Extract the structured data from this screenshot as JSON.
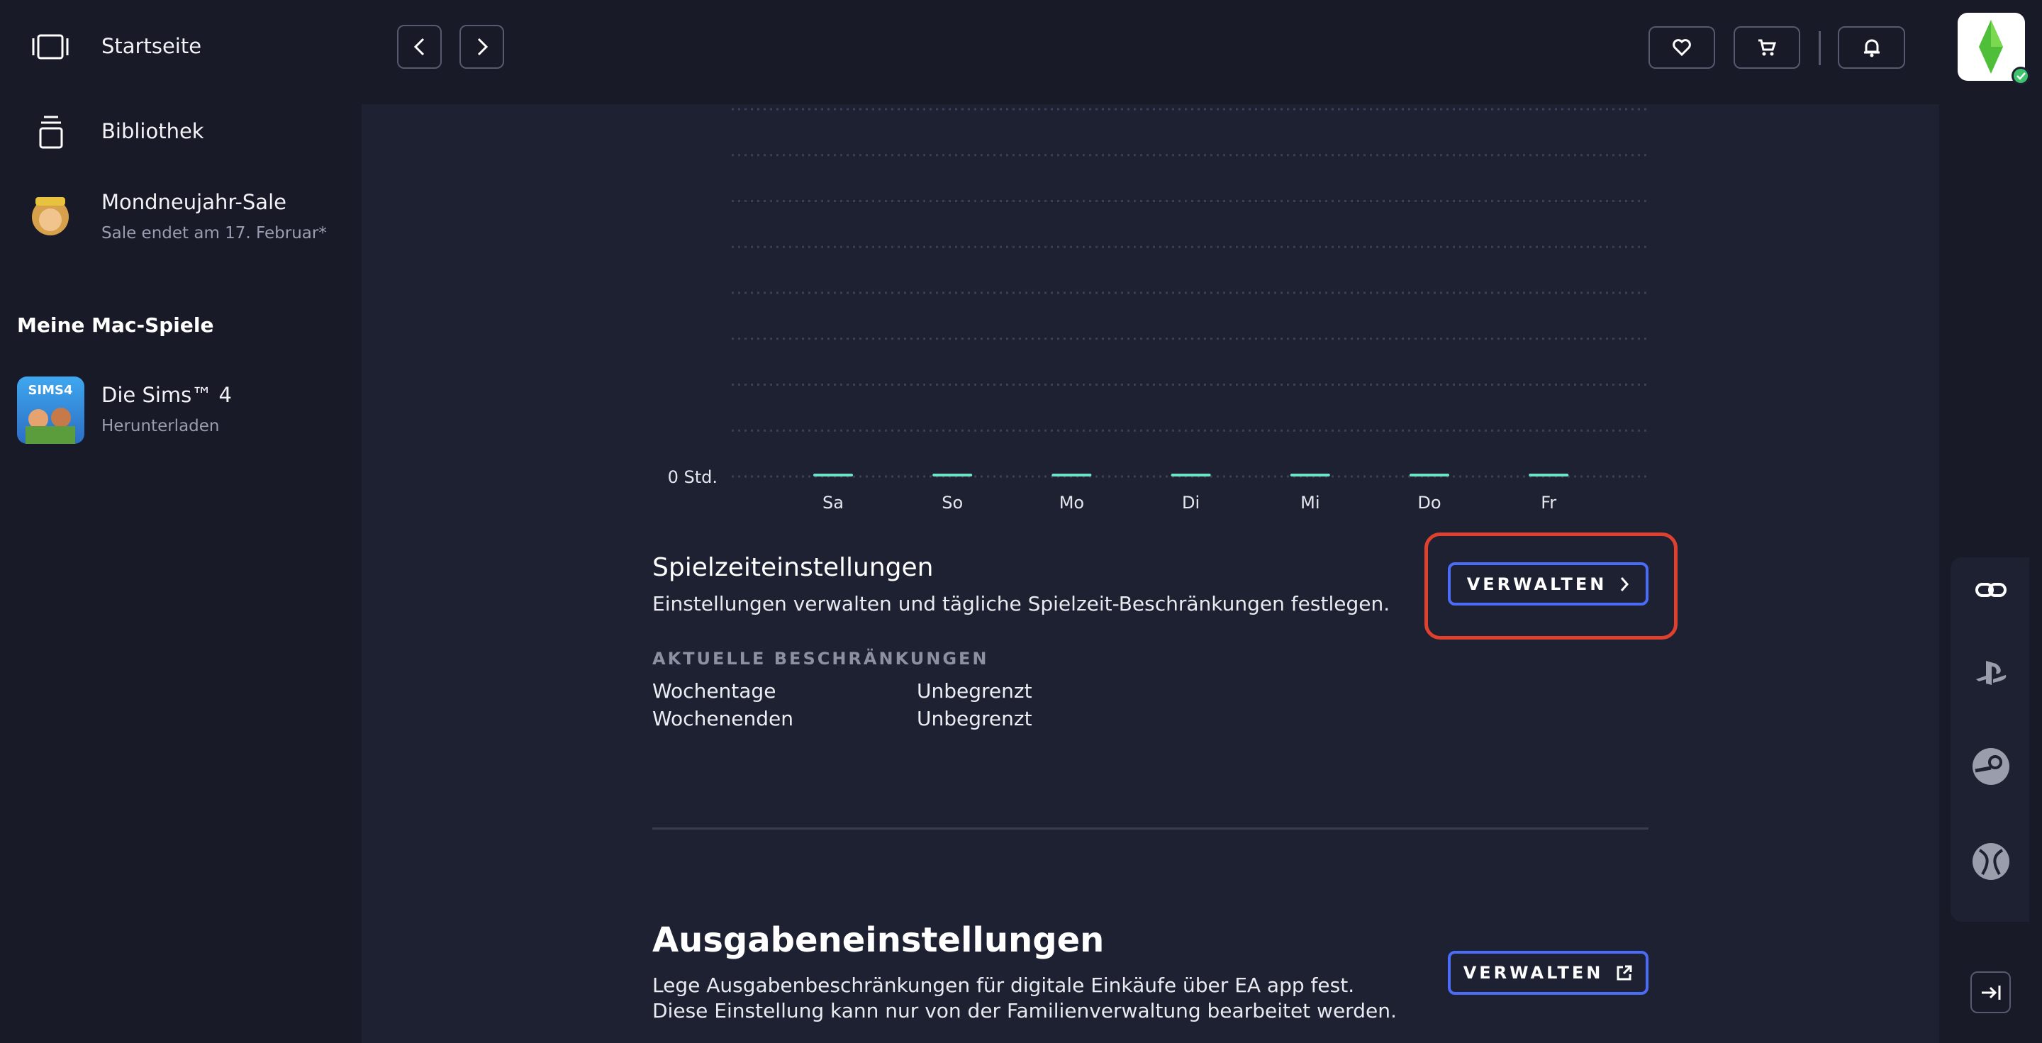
{
  "sidebar": {
    "nav": [
      {
        "label": "Startseite"
      },
      {
        "label": "Bibliothek"
      },
      {
        "label": "Mondneujahr-Sale",
        "subtitle": "Sale endet am 17. Februar*"
      }
    ],
    "section_title": "Meine Mac-Spiele",
    "games": [
      {
        "title": "Die Sims™ 4",
        "status": "Herunterladen"
      }
    ]
  },
  "chart_data": {
    "type": "bar",
    "categories": [
      "Sa",
      "So",
      "Mo",
      "Di",
      "Mi",
      "Do",
      "Fr"
    ],
    "values": [
      0,
      0,
      0,
      0,
      0,
      0,
      0
    ],
    "color": "#6fe3c6",
    "ylim": [
      0,
      8
    ],
    "yticks": [
      {
        "value": 0,
        "label": "0 Std."
      },
      {
        "value": 1,
        "label": null
      },
      {
        "value": 2,
        "label": null
      },
      {
        "value": 3,
        "label": null
      },
      {
        "value": 4,
        "label": null
      },
      {
        "value": 5,
        "label": null
      },
      {
        "value": 6,
        "label": null
      },
      {
        "value": 7,
        "label": null
      },
      {
        "value": 8,
        "label": null
      }
    ],
    "grid": true
  },
  "playtime": {
    "title": "Spielzeiteinstellungen",
    "description": "Einstellungen verwalten und tägliche Spielzeit-Beschränkungen festlegen.",
    "button": "VERWALTEN",
    "restrictions_title": "AKTUELLE BESCHRÄNKUNGEN",
    "rows": [
      [
        "Wochentage",
        "Unbegrenzt"
      ],
      [
        "Wochenenden",
        "Unbegrenzt"
      ]
    ]
  },
  "spending": {
    "title": "Ausgabeneinstellungen",
    "description": "Lege Ausgabenbeschränkungen für digitale Einkäufe über EA app fest. Diese Einstellung kann nur von der Familienverwaltung bearbeitet werden.",
    "button": "VERWALTEN"
  }
}
